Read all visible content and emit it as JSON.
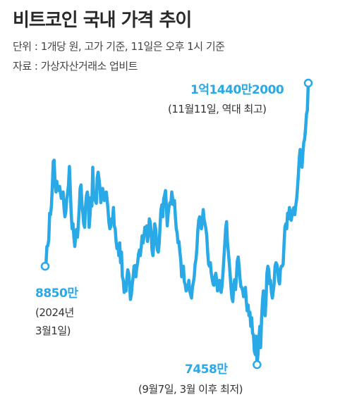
{
  "title": "비트코인 국내 가격 추이",
  "subtitle_unit": "단위 : 1개당 원, 고가 기준, 11일은 오후 1시 기준",
  "subtitle_source": "자료 : 가상자산거래소 업비트",
  "annotations": {
    "peak_value": "1억1440만2000",
    "peak_note": "(11월11일, 역대 최고)",
    "start_value": "8850만",
    "start_note_line1": "(2024년",
    "start_note_line2": "3월1일)",
    "low_value": "7458만",
    "low_note": "(9월7일, 3월 이후 최저)"
  },
  "colors": {
    "line": "#29a9e6",
    "marker_fill": "#ffffff",
    "text": "#333333"
  },
  "chart_data": {
    "type": "line",
    "title": "비트코인 국내 가격 추이",
    "unit": "1개당 원, 고가 기준",
    "x_range": [
      "2024-03-01",
      "2024-11-11"
    ],
    "y_unit": "만 원",
    "grid": false,
    "series": [
      {
        "values": [
          8850,
          8900,
          9130,
          9140,
          9220,
          9600,
          9580,
          9700,
          9980,
          10330,
          10350,
          10050,
          9900,
          10050,
          9950,
          9920,
          9980,
          9900,
          9810,
          9870,
          9900,
          9680,
          9550,
          9620,
          9800,
          9880,
          10000,
          10260,
          9950,
          9600,
          9380,
          9450,
          9270,
          9130,
          9280,
          9370,
          9260,
          9450,
          9680,
          9950,
          10000,
          9720,
          9600,
          9450,
          9400,
          9700,
          9850,
          9900,
          9800,
          9400,
          9580,
          9820,
          9700,
          10250,
          9880,
          9800,
          9770,
          9740,
          10100,
          10180,
          10080,
          9960,
          9750,
          9830,
          9950,
          9880,
          9780,
          9830,
          9900,
          9800,
          9650,
          9470,
          9380,
          9410,
          9520,
          9500,
          9680,
          9420,
          9380,
          9200,
          9100,
          9160,
          9000,
          9180,
          8900,
          9050,
          8700,
          8650,
          8480,
          8550,
          8500,
          8680,
          8800,
          8750,
          8600,
          8380,
          8450,
          8600,
          8700,
          8850,
          8860,
          8700,
          8820,
          8900,
          9020,
          9080,
          9000,
          9120,
          9280,
          9180,
          9260,
          9400,
          9370,
          9420,
          9200,
          9300,
          9520,
          9480,
          9350,
          9080,
          9000,
          9170,
          9450,
          9380,
          9200,
          9080,
          9050,
          9170,
          9420,
          9650,
          9720,
          9550,
          9800,
          9850,
          9920,
          9700,
          9420,
          9600,
          9700,
          9750,
          9730,
          9900,
          9800,
          9720,
          9780,
          9550,
          9380,
          9320,
          9180,
          9200,
          9050,
          8950,
          8700,
          8800,
          8850,
          8630,
          8590,
          8500,
          8580,
          8520,
          8650,
          8500,
          8450,
          8400,
          8550,
          8620,
          8700,
          8880,
          8950,
          9100,
          9350,
          9500,
          9550,
          9500,
          9380,
          9480,
          9650,
          9510,
          9450,
          9380,
          9280,
          9050,
          8880,
          8850,
          8900,
          8750,
          8670,
          8600,
          8580,
          8700,
          8750,
          8650,
          8500,
          8600,
          8650,
          8550,
          8480,
          8580,
          8750,
          8950,
          9150,
          9380,
          9480,
          9200,
          9050,
          8900,
          8740,
          8550,
          8400,
          8350,
          8580,
          8660,
          8520,
          8700,
          8920,
          8980,
          8850,
          8680,
          8560,
          8550,
          8500,
          8420,
          8480,
          8550,
          8350,
          8220,
          8300,
          8150,
          8200,
          8000,
          8120,
          7900,
          7880,
          7650,
          7600,
          7860,
          7458,
          7600,
          7820,
          8000,
          7700,
          8100,
          8350,
          8500,
          8250,
          8150,
          8400,
          8750,
          8850,
          8800,
          8600,
          8650,
          8480,
          8400,
          8500,
          8600,
          8850,
          8900,
          8880,
          8800,
          8650,
          8600,
          8800,
          8850,
          8850,
          8880,
          9150,
          9400,
          9450,
          9380,
          9600,
          9520,
          9680,
          9600,
          9500,
          9580,
          9650,
          9680,
          9580,
          9700,
          9800,
          9950,
          10150,
          10380,
          10500,
          10300,
          10250,
          10450,
          10600,
          10650,
          10800,
          11000,
          11050,
          11440.2
        ]
      }
    ],
    "annotations": [
      {
        "date": "2024-03-01",
        "value": 8850,
        "label": "8850만"
      },
      {
        "date": "2024-09-07",
        "value": 7458,
        "label": "7458만"
      },
      {
        "date": "2024-11-11",
        "value": 11440.2,
        "label": "1억1440만2000"
      }
    ]
  }
}
